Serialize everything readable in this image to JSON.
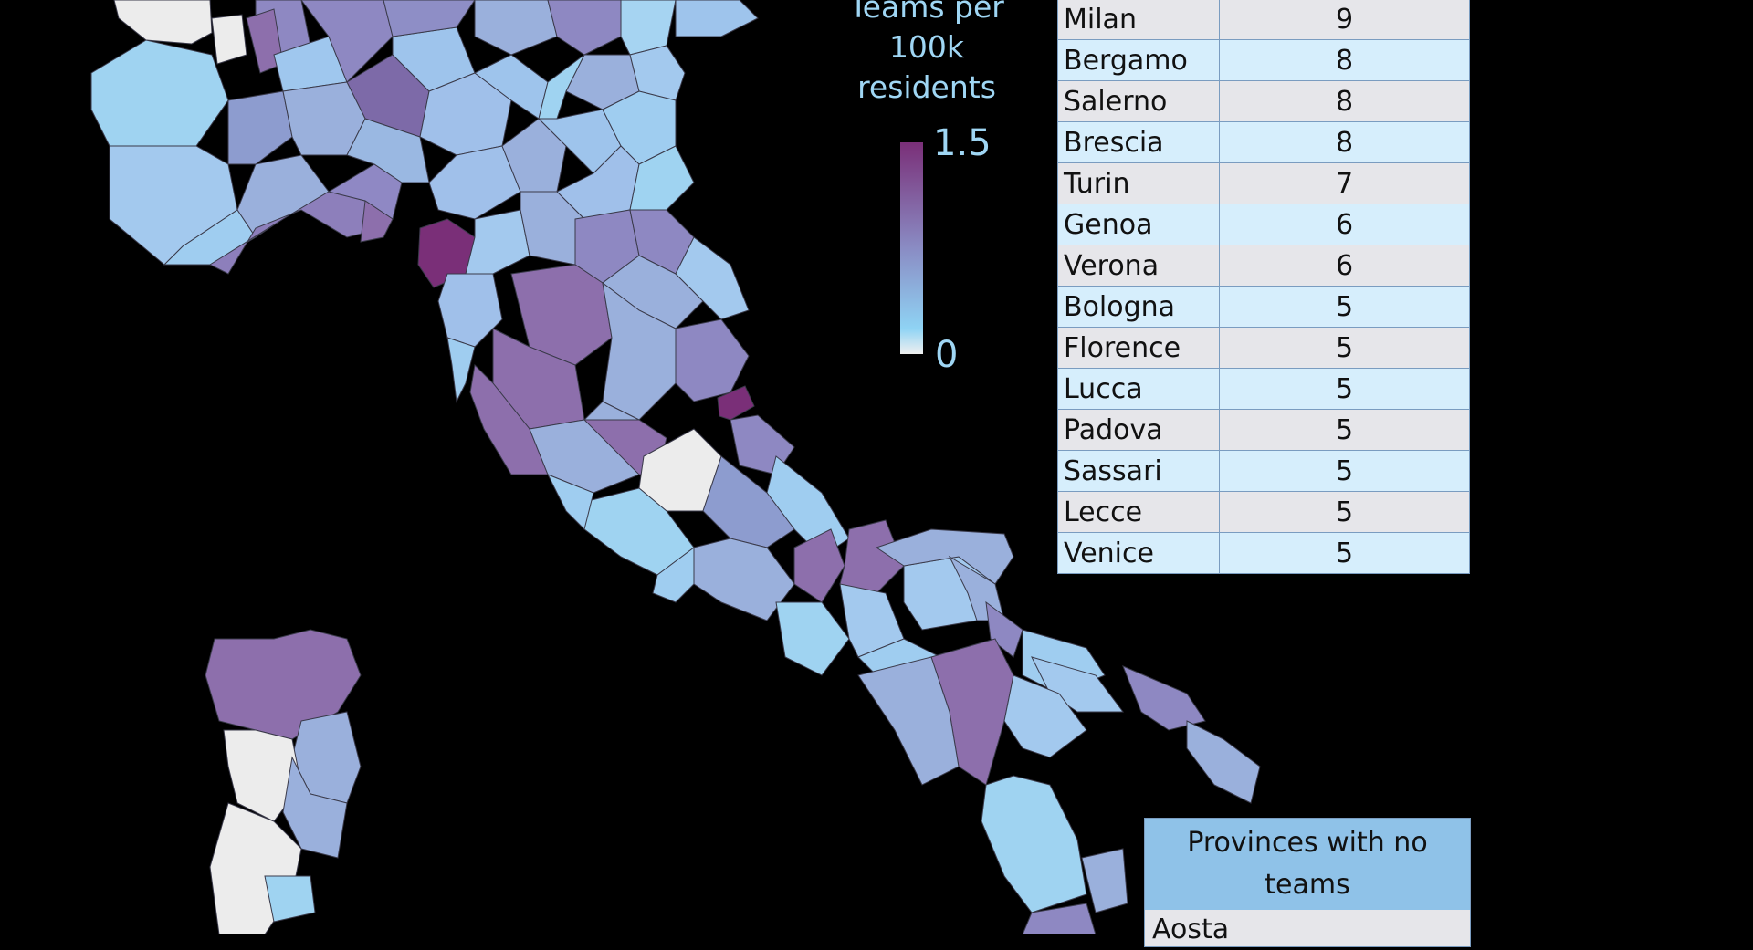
{
  "legend": {
    "title_lines": [
      "Teams per",
      "100k",
      "residents"
    ],
    "max_label": "1.5",
    "min_label": "0"
  },
  "colors": {
    "background": "#000000",
    "no_data": "#ececec",
    "low": "#8fd3f4",
    "mid": "#8a8cc4",
    "high": "#7a2f78"
  },
  "team_counts": [
    {
      "city": "Milan",
      "teams": "9"
    },
    {
      "city": "Bergamo",
      "teams": "8"
    },
    {
      "city": "Salerno",
      "teams": "8"
    },
    {
      "city": "Brescia",
      "teams": "8"
    },
    {
      "city": "Turin",
      "teams": "7"
    },
    {
      "city": "Genoa",
      "teams": "6"
    },
    {
      "city": "Verona",
      "teams": "6"
    },
    {
      "city": "Bologna",
      "teams": "5"
    },
    {
      "city": "Florence",
      "teams": "5"
    },
    {
      "city": "Lucca",
      "teams": "5"
    },
    {
      "city": "Padova",
      "teams": "5"
    },
    {
      "city": "Sassari",
      "teams": "5"
    },
    {
      "city": "Lecce",
      "teams": "5"
    },
    {
      "city": "Venice",
      "teams": "5"
    }
  ],
  "no_teams": {
    "header": "Provinces with no teams",
    "items": [
      "Aosta"
    ]
  }
}
